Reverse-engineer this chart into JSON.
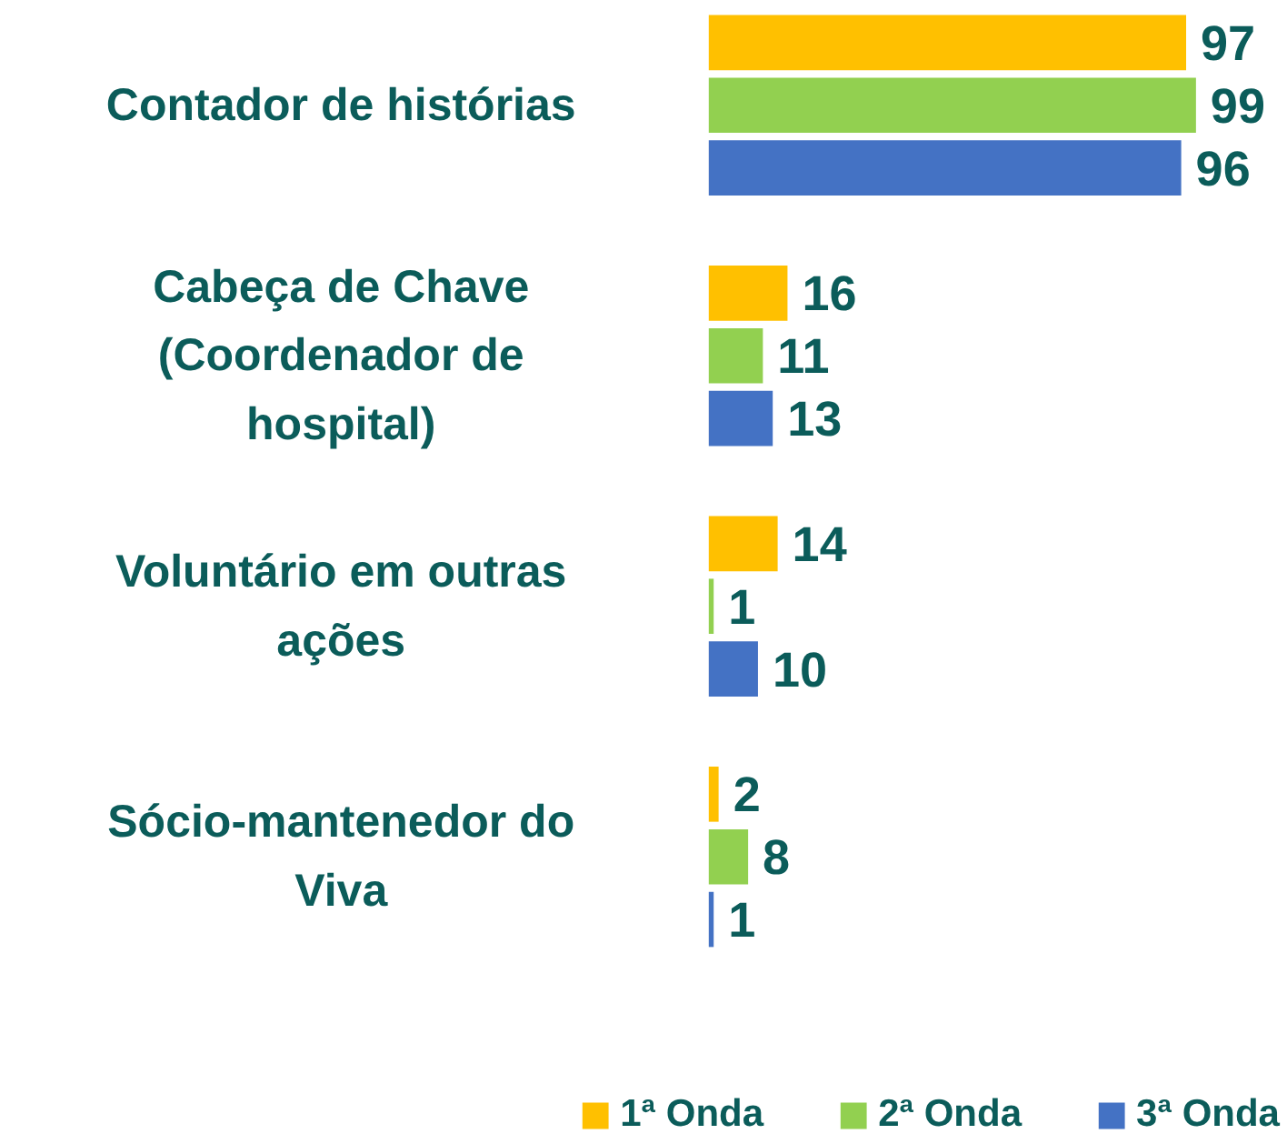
{
  "chart_data": {
    "type": "bar",
    "orientation": "horizontal",
    "categories": [
      "Contador de histórias",
      "Cabeça de Chave (Coordenador de hospital)",
      "Voluntário em outras ações",
      "Sócio-mantenedor do Viva"
    ],
    "series": [
      {
        "name": "1ª Onda",
        "color": "#ffc000",
        "values": [
          97,
          16,
          14,
          2
        ]
      },
      {
        "name": "2ª Onda",
        "color": "#92d050",
        "values": [
          99,
          11,
          1,
          8
        ]
      },
      {
        "name": "3ª Onda",
        "color": "#4472c4",
        "values": [
          96,
          13,
          10,
          1
        ]
      }
    ],
    "data_labels": true,
    "legend": "bottom",
    "grid": false
  }
}
